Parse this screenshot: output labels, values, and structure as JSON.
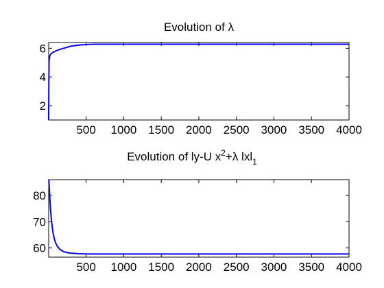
{
  "chart_data": [
    {
      "type": "line",
      "title": "Evolution of λ",
      "xlim": [
        1,
        4000
      ],
      "ylim": [
        1,
        6.4
      ],
      "xticks": [
        500,
        1000,
        1500,
        2000,
        2500,
        3000,
        3500,
        4000
      ],
      "yticks": [
        2,
        4,
        6
      ],
      "grid": false,
      "color": "#0000ff",
      "series": [
        {
          "x": [
            1,
            3,
            6,
            10,
            15,
            20,
            30,
            40,
            60,
            80,
            100,
            150,
            200,
            300,
            400,
            500,
            600,
            800,
            1000,
            2000,
            3000,
            4000
          ],
          "y": [
            1,
            3.0,
            5.0,
            5.3,
            5.45,
            5.52,
            5.6,
            5.65,
            5.72,
            5.77,
            5.82,
            5.92,
            6.0,
            6.15,
            6.22,
            6.26,
            6.28,
            6.28,
            6.28,
            6.28,
            6.28,
            6.28
          ]
        }
      ]
    },
    {
      "type": "line",
      "title_parts": [
        "Evolution of ly-U x",
        "2",
        "+λ lxl",
        "1"
      ],
      "xlim": [
        1,
        4000
      ],
      "ylim": [
        56.5,
        86
      ],
      "xticks": [
        500,
        1000,
        1500,
        2000,
        2500,
        3000,
        3500,
        4000
      ],
      "yticks": [
        60,
        70,
        80
      ],
      "grid": false,
      "color": "#0000ff",
      "series": [
        {
          "x": [
            1,
            5,
            10,
            20,
            30,
            40,
            50,
            60,
            80,
            100,
            120,
            150,
            200,
            250,
            300,
            350,
            400,
            500,
            600,
            1000,
            2000,
            3000,
            4000
          ],
          "y": [
            86,
            85,
            82,
            77,
            73,
            70,
            67.5,
            65.5,
            63,
            61.5,
            60.5,
            59.5,
            58.6,
            58.2,
            58.0,
            57.9,
            57.8,
            57.7,
            57.7,
            57.7,
            57.7,
            57.7,
            57.7
          ]
        }
      ]
    }
  ]
}
